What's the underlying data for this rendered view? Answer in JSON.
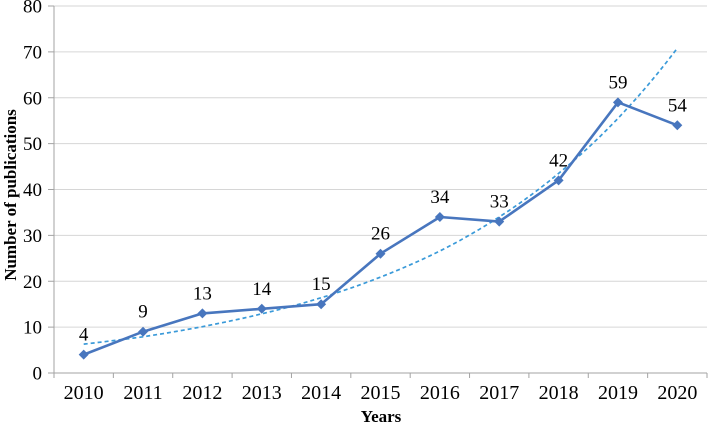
{
  "chart_data": {
    "type": "line",
    "xlabel": "Years",
    "ylabel": "Number of publications",
    "categories": [
      "2010",
      "2011",
      "2012",
      "2013",
      "2014",
      "2015",
      "2016",
      "2017",
      "2018",
      "2019",
      "2020"
    ],
    "series": [
      {
        "name": "publications",
        "style": "solid",
        "marker": "diamond",
        "values": [
          4,
          9,
          13,
          14,
          15,
          26,
          34,
          33,
          42,
          59,
          54
        ]
      },
      {
        "name": "exponential-trendline",
        "style": "dashed",
        "marker": "none",
        "values": [
          6.3,
          7.9,
          10.1,
          12.9,
          16.4,
          20.9,
          26.6,
          34.0,
          43.5,
          55.5,
          70.8
        ]
      }
    ],
    "data_labels": [
      "4",
      "9",
      "13",
      "14",
      "15",
      "26",
      "34",
      "33",
      "42",
      "59",
      "54"
    ],
    "yticks": [
      "0",
      "10",
      "20",
      "30",
      "40",
      "50",
      "60",
      "70",
      "80"
    ],
    "ylim": [
      0,
      80
    ],
    "ytick_step": 10,
    "grid": "horizontal",
    "legend": "none",
    "colors": {
      "series_line": "#4876be",
      "trend_line": "#3a9ad9",
      "gridline": "#d6d6d6",
      "axis": "#a3a3a3",
      "text": "#000000",
      "background": "#ffffff"
    }
  }
}
